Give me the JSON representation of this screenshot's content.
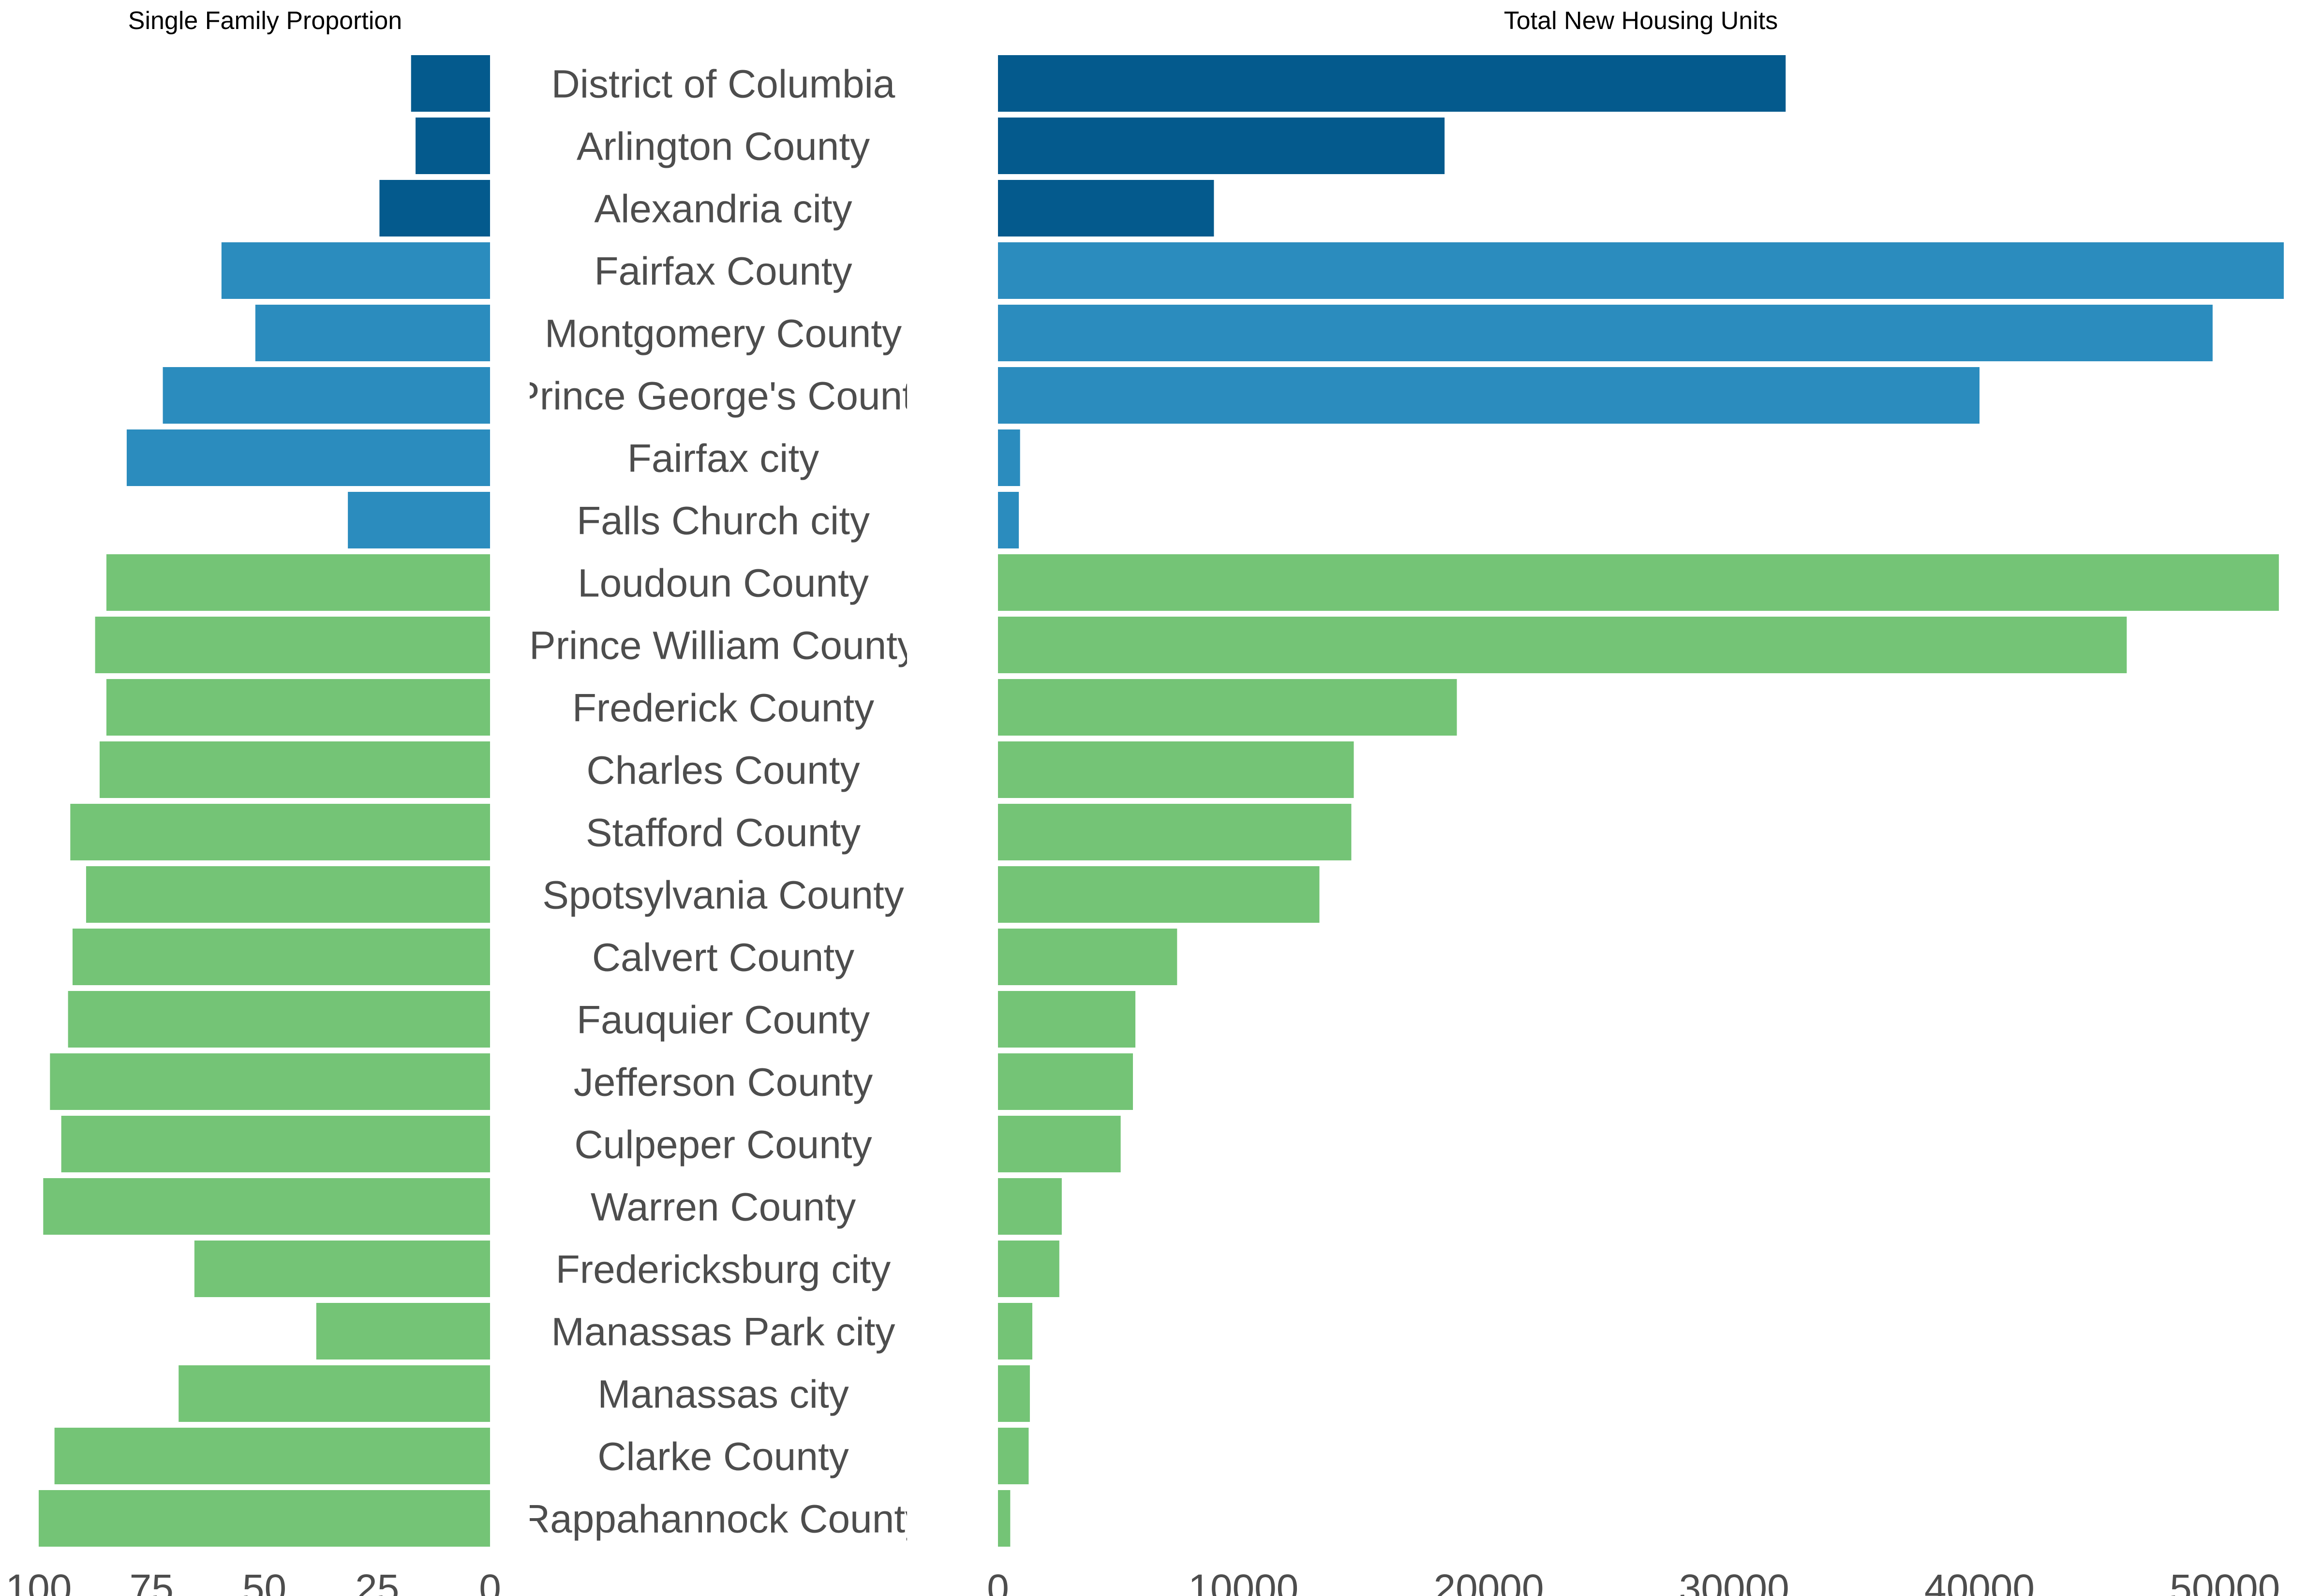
{
  "chart_data": [
    {
      "type": "bar",
      "orientation": "horizontal",
      "direction": "reversed",
      "title": "Single Family Proportion",
      "categories": [
        "District of Columbia",
        "Arlington County",
        "Alexandria city",
        "Fairfax County",
        "Montgomery County",
        "Prince George's County",
        "Fairfax city",
        "Falls Church city",
        "Loudoun County",
        "Prince William County",
        "Frederick County",
        "Charles County",
        "Stafford County",
        "Spotsylvania County",
        "Calvert County",
        "Fauquier County",
        "Jefferson County",
        "Culpeper County",
        "Warren County",
        "Fredericksburg city",
        "Manassas Park city",
        "Manassas city",
        "Clarke County",
        "Rappahannock County"
      ],
      "values": [
        17.5,
        16.5,
        24.5,
        59.5,
        52,
        72.5,
        80.5,
        31.5,
        85,
        87.5,
        85,
        86.5,
        93,
        89.5,
        92.5,
        93.5,
        97.5,
        95,
        99,
        65.5,
        38.5,
        69,
        96.5,
        100
      ],
      "groups": [
        "core",
        "core",
        "core",
        "inner",
        "inner",
        "inner",
        "inner",
        "inner",
        "outer",
        "outer",
        "outer",
        "outer",
        "outer",
        "outer",
        "outer",
        "outer",
        "outer",
        "outer",
        "outer",
        "outer",
        "outer",
        "outer",
        "outer",
        "outer"
      ],
      "xlim": [
        0,
        100
      ],
      "ticks": [
        100,
        75,
        50,
        25,
        0
      ],
      "grid": false
    },
    {
      "type": "bar",
      "orientation": "horizontal",
      "title": "Total New Housing Units",
      "categories": [
        "District of Columbia",
        "Arlington County",
        "Alexandria city",
        "Fairfax County",
        "Montgomery County",
        "Prince George's County",
        "Fairfax city",
        "Falls Church city",
        "Loudoun County",
        "Prince William County",
        "Frederick County",
        "Charles County",
        "Stafford County",
        "Spotsylvania County",
        "Calvert County",
        "Fauquier County",
        "Jefferson County",
        "Culpeper County",
        "Warren County",
        "Fredericksburg city",
        "Manassas Park city",
        "Manassas city",
        "Clarke County",
        "Rappahannock County"
      ],
      "values": [
        32100,
        18200,
        8800,
        52400,
        49500,
        40000,
        900,
        850,
        52200,
        46000,
        18700,
        14500,
        14400,
        13100,
        7300,
        5600,
        5500,
        5000,
        2600,
        2500,
        1400,
        1300,
        1250,
        500
      ],
      "groups": [
        "core",
        "core",
        "core",
        "inner",
        "inner",
        "inner",
        "inner",
        "inner",
        "outer",
        "outer",
        "outer",
        "outer",
        "outer",
        "outer",
        "outer",
        "outer",
        "outer",
        "outer",
        "outer",
        "outer",
        "outer",
        "outer",
        "outer",
        "outer"
      ],
      "xlim": [
        0,
        52400
      ],
      "ticks": [
        0,
        10000,
        20000,
        30000,
        40000,
        50000
      ],
      "grid": false
    }
  ],
  "colors": {
    "core": "#045a8d",
    "inner": "#2b8cbe",
    "outer": "#74c476",
    "label_text": "#4d4d4d",
    "title_text": "#000000"
  }
}
